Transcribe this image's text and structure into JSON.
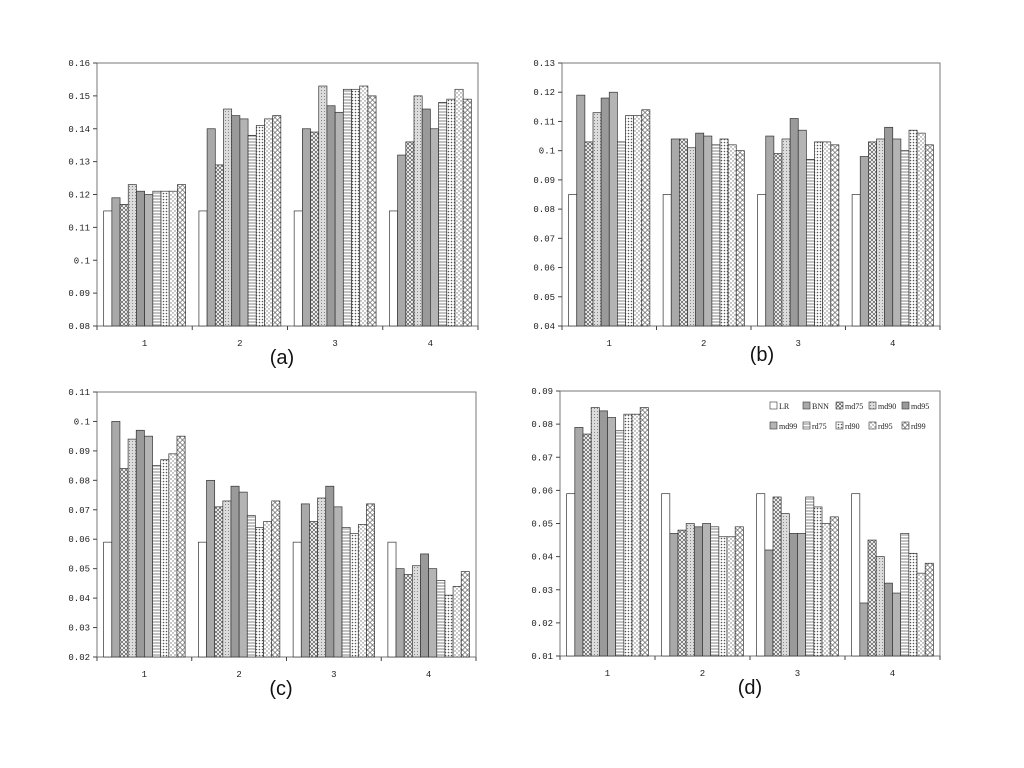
{
  "chart_data": [
    {
      "type": "bar",
      "title": "",
      "panel_label": "(a)",
      "categories": [
        "1",
        "2",
        "3",
        "4"
      ],
      "ylim": [
        0.08,
        0.16
      ],
      "yticks": [
        "0.08",
        "0.09",
        "0.1",
        "0.11",
        "0.12",
        "0.13",
        "0.14",
        "0.15",
        "0.16"
      ],
      "series": [
        {
          "name": "LR",
          "values": [
            0.115,
            0.115,
            0.115,
            0.115
          ]
        },
        {
          "name": "BNN",
          "values": [
            0.119,
            0.14,
            0.14,
            0.132
          ]
        },
        {
          "name": "md75",
          "values": [
            0.117,
            0.129,
            0.139,
            0.136
          ]
        },
        {
          "name": "md90",
          "values": [
            0.123,
            0.146,
            0.153,
            0.15
          ]
        },
        {
          "name": "md95",
          "values": [
            0.121,
            0.144,
            0.147,
            0.146
          ]
        },
        {
          "name": "md99",
          "values": [
            0.12,
            0.143,
            0.145,
            0.14
          ]
        },
        {
          "name": "rd75",
          "values": [
            0.121,
            0.138,
            0.152,
            0.148
          ]
        },
        {
          "name": "rd90",
          "values": [
            0.121,
            0.141,
            0.152,
            0.149
          ]
        },
        {
          "name": "rd95",
          "values": [
            0.121,
            0.143,
            0.153,
            0.152
          ]
        },
        {
          "name": "rd99",
          "values": [
            0.123,
            0.144,
            0.15,
            0.149
          ]
        }
      ]
    },
    {
      "type": "bar",
      "title": "",
      "panel_label": "(b)",
      "categories": [
        "1",
        "2",
        "3",
        "4"
      ],
      "ylim": [
        0.04,
        0.13
      ],
      "yticks": [
        "0.04",
        "0.05",
        "0.06",
        "0.07",
        "0.08",
        "0.09",
        "0.1",
        "0.11",
        "0.12",
        "0.13"
      ],
      "series": [
        {
          "name": "LR",
          "values": [
            0.085,
            0.085,
            0.085,
            0.085
          ]
        },
        {
          "name": "BNN",
          "values": [
            0.119,
            0.104,
            0.105,
            0.098
          ]
        },
        {
          "name": "md75",
          "values": [
            0.103,
            0.104,
            0.099,
            0.103
          ]
        },
        {
          "name": "md90",
          "values": [
            0.113,
            0.101,
            0.104,
            0.104
          ]
        },
        {
          "name": "md95",
          "values": [
            0.118,
            0.106,
            0.111,
            0.108
          ]
        },
        {
          "name": "md99",
          "values": [
            0.12,
            0.105,
            0.107,
            0.104
          ]
        },
        {
          "name": "rd75",
          "values": [
            0.103,
            0.102,
            0.097,
            0.1
          ]
        },
        {
          "name": "rd90",
          "values": [
            0.112,
            0.104,
            0.103,
            0.107
          ]
        },
        {
          "name": "rd95",
          "values": [
            0.112,
            0.102,
            0.103,
            0.106
          ]
        },
        {
          "name": "rd99",
          "values": [
            0.114,
            0.1,
            0.102,
            0.102
          ]
        }
      ]
    },
    {
      "type": "bar",
      "title": "",
      "panel_label": "(c)",
      "categories": [
        "1",
        "2",
        "3",
        "4"
      ],
      "ylim": [
        0.02,
        0.11
      ],
      "yticks": [
        "0.02",
        "0.03",
        "0.04",
        "0.05",
        "0.06",
        "0.07",
        "0.08",
        "0.09",
        "0.1",
        "0.11"
      ],
      "series": [
        {
          "name": "LR",
          "values": [
            0.059,
            0.059,
            0.059,
            0.059
          ]
        },
        {
          "name": "BNN",
          "values": [
            0.1,
            0.08,
            0.072,
            0.05
          ]
        },
        {
          "name": "md75",
          "values": [
            0.084,
            0.071,
            0.066,
            0.048
          ]
        },
        {
          "name": "md90",
          "values": [
            0.094,
            0.073,
            0.074,
            0.051
          ]
        },
        {
          "name": "md95",
          "values": [
            0.097,
            0.078,
            0.078,
            0.055
          ]
        },
        {
          "name": "md99",
          "values": [
            0.095,
            0.076,
            0.071,
            0.05
          ]
        },
        {
          "name": "rd75",
          "values": [
            0.085,
            0.068,
            0.064,
            0.046
          ]
        },
        {
          "name": "rd90",
          "values": [
            0.087,
            0.064,
            0.062,
            0.041
          ]
        },
        {
          "name": "rd95",
          "values": [
            0.089,
            0.066,
            0.065,
            0.044
          ]
        },
        {
          "name": "rd99",
          "values": [
            0.095,
            0.073,
            0.072,
            0.049
          ]
        }
      ]
    },
    {
      "type": "bar",
      "title": "",
      "panel_label": "(d)",
      "categories": [
        "1",
        "2",
        "3",
        "4"
      ],
      "ylim": [
        0.01,
        0.09
      ],
      "yticks": [
        "0.01",
        "0.02",
        "0.03",
        "0.04",
        "0.05",
        "0.06",
        "0.07",
        "0.08",
        "0.09"
      ],
      "legend": "top-right",
      "series": [
        {
          "name": "LR",
          "values": [
            0.059,
            0.059,
            0.059,
            0.059
          ]
        },
        {
          "name": "BNN",
          "values": [
            0.079,
            0.047,
            0.042,
            0.026
          ]
        },
        {
          "name": "md75",
          "values": [
            0.077,
            0.048,
            0.058,
            0.045
          ]
        },
        {
          "name": "md90",
          "values": [
            0.085,
            0.05,
            0.053,
            0.04
          ]
        },
        {
          "name": "md95",
          "values": [
            0.084,
            0.049,
            0.047,
            0.032
          ]
        },
        {
          "name": "md99",
          "values": [
            0.082,
            0.05,
            0.047,
            0.029
          ]
        },
        {
          "name": "rd75",
          "values": [
            0.078,
            0.049,
            0.058,
            0.047
          ]
        },
        {
          "name": "rd90",
          "values": [
            0.083,
            0.046,
            0.055,
            0.041
          ]
        },
        {
          "name": "rd95",
          "values": [
            0.083,
            0.046,
            0.05,
            0.035
          ]
        },
        {
          "name": "rd99",
          "values": [
            0.085,
            0.049,
            0.052,
            0.038
          ]
        }
      ]
    }
  ],
  "series_styles": {
    "LR": "white",
    "BNN": "#a9a9a9",
    "md75": "cross-hatch",
    "md90": "#d2d2d2 fine pattern",
    "md95": "#9a9a9a",
    "md99": "#b4b4b4",
    "rd75": "horizontal lines",
    "rd90": "dense dots",
    "rd95": "light dots",
    "rd99": "diamond hatch"
  }
}
